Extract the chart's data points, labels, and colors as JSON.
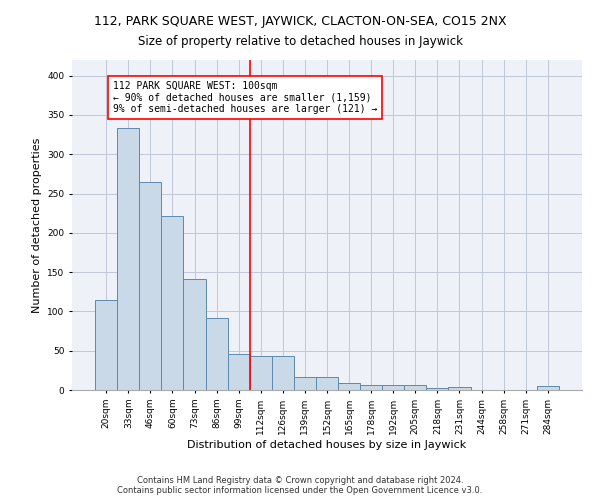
{
  "title": "112, PARK SQUARE WEST, JAYWICK, CLACTON-ON-SEA, CO15 2NX",
  "subtitle": "Size of property relative to detached houses in Jaywick",
  "xlabel": "Distribution of detached houses by size in Jaywick",
  "ylabel": "Number of detached properties",
  "categories": [
    "20sqm",
    "33sqm",
    "46sqm",
    "60sqm",
    "73sqm",
    "86sqm",
    "99sqm",
    "112sqm",
    "126sqm",
    "139sqm",
    "152sqm",
    "165sqm",
    "178sqm",
    "192sqm",
    "205sqm",
    "218sqm",
    "231sqm",
    "244sqm",
    "258sqm",
    "271sqm",
    "284sqm"
  ],
  "values": [
    114,
    333,
    265,
    222,
    141,
    92,
    46,
    43,
    43,
    17,
    17,
    9,
    7,
    6,
    7,
    3,
    4,
    0,
    0,
    0,
    5
  ],
  "bar_color": "#c9d9e8",
  "bar_edge_color": "#5a8ab0",
  "vline_x": 6.5,
  "vline_color": "red",
  "annotation_line1": "112 PARK SQUARE WEST: 100sqm",
  "annotation_line2": "← 90% of detached houses are smaller (1,159)",
  "annotation_line3": "9% of semi-detached houses are larger (121) →",
  "annotation_box_color": "white",
  "annotation_box_edge_color": "red",
  "ylim": [
    0,
    420
  ],
  "yticks": [
    0,
    50,
    100,
    150,
    200,
    250,
    300,
    350,
    400
  ],
  "grid_color": "#c0c8d8",
  "bg_color": "#eef2f8",
  "footer": "Contains HM Land Registry data © Crown copyright and database right 2024.\nContains public sector information licensed under the Open Government Licence v3.0.",
  "title_fontsize": 9,
  "subtitle_fontsize": 8.5,
  "xlabel_fontsize": 8,
  "ylabel_fontsize": 8,
  "tick_fontsize": 6.5,
  "annotation_fontsize": 7,
  "footer_fontsize": 6
}
